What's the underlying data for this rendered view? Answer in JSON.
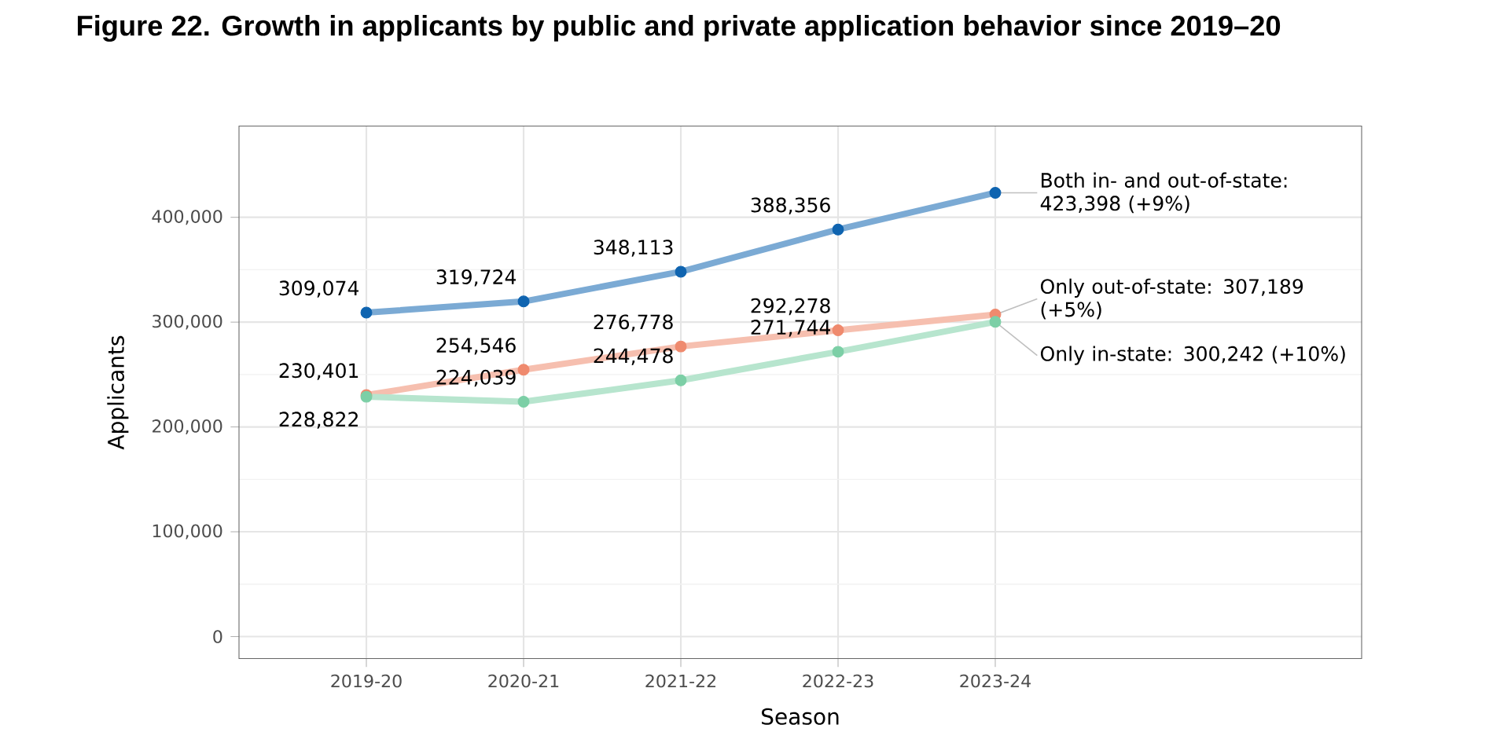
{
  "chart_data": {
    "type": "line",
    "title": "Figure 22. Growth in applicants by public and private application behavior since 2019–20",
    "xlabel": "Season",
    "ylabel": "Applicants",
    "categories": [
      "2019-20",
      "2020-21",
      "2021-22",
      "2022-23",
      "2023-24"
    ],
    "series": [
      {
        "color": "#0f64b0",
        "values": [
          309074,
          319724,
          348113,
          388356,
          423398
        ],
        "value_labels": [
          "309,074",
          "319,724",
          "348,113",
          "388,356",
          null
        ]
      },
      {
        "color": "#ef8a6e",
        "values": [
          230401,
          254546,
          276778,
          292278,
          307189
        ],
        "value_labels": [
          "230,401",
          "254,546",
          "276,778",
          "292,278",
          null
        ]
      },
      {
        "color": "#7ccfa6",
        "values": [
          228822,
          224039,
          244478,
          271744,
          300242
        ],
        "value_labels": [
          "228,822",
          "224,039",
          "244,478",
          "271,744",
          null
        ]
      }
    ],
    "annotations": [
      {
        "text": "Both in- and out-of-state: 423,398 (+9%)",
        "x": "2023-24",
        "y": 423398
      },
      {
        "text": "Only out-of-state: 307,189 (+5%)",
        "x": "2023-24",
        "y": 307189
      },
      {
        "text": "Only in-state: 300,242 (+10%)",
        "x": "2023-24",
        "y": 300242
      }
    ],
    "ylim": [
      -21000,
      487000
    ],
    "yticks": [
      {
        "value": 0,
        "label": "0"
      },
      {
        "value": 100000,
        "label": "100,000"
      },
      {
        "value": 200000,
        "label": "200,000"
      },
      {
        "value": 300000,
        "label": "300,000"
      },
      {
        "value": 400000,
        "label": "400,000"
      }
    ],
    "grid": true,
    "marker": "circle",
    "line_style": "solid"
  }
}
